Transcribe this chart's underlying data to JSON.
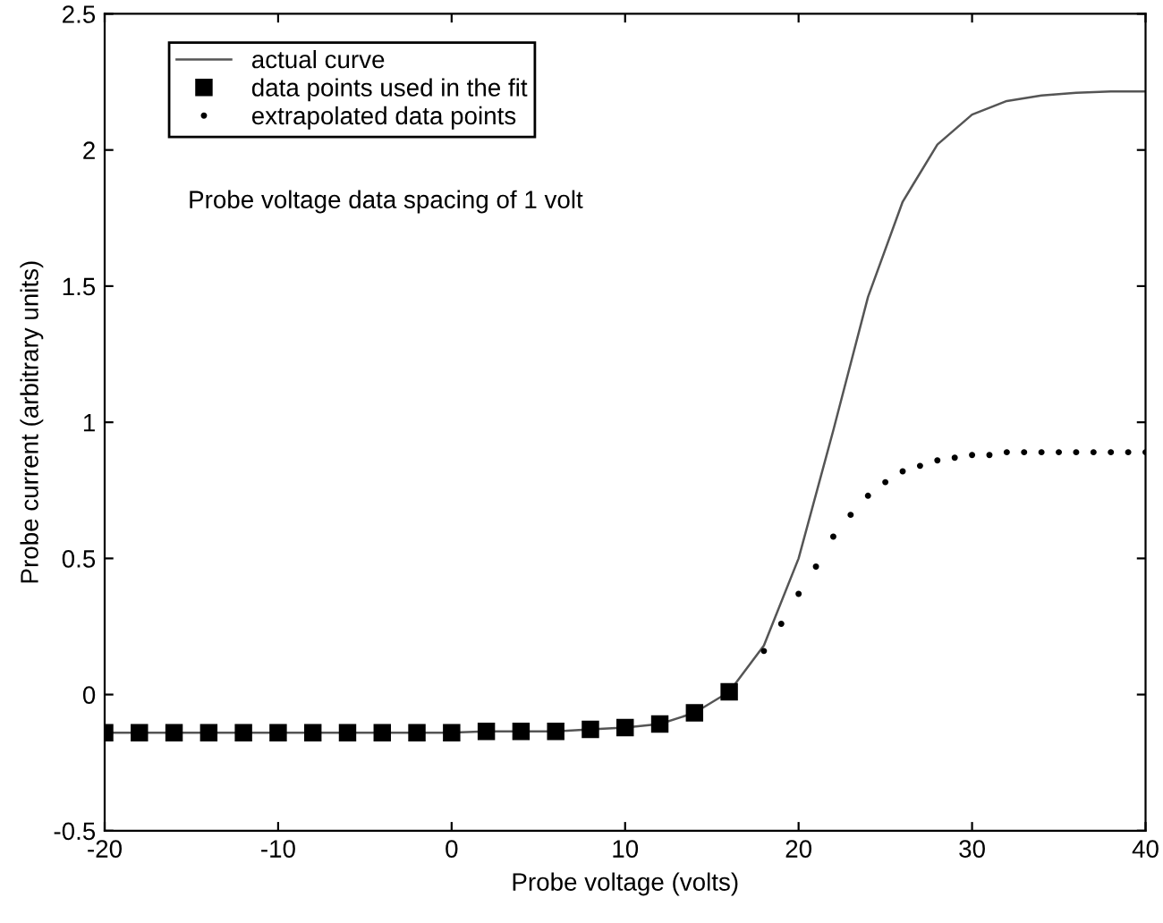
{
  "chart_data": {
    "type": "line",
    "xlabel": "Probe voltage (volts)",
    "ylabel": "Probe current (arbitrary units)",
    "xlim": [
      -20,
      40
    ],
    "ylim": [
      -0.5,
      2.5
    ],
    "xticks": [
      -20,
      -10,
      0,
      10,
      20,
      30,
      40
    ],
    "yticks": [
      -0.5,
      0,
      0.5,
      1,
      1.5,
      2,
      2.5
    ],
    "grid": false,
    "legend": "top left",
    "annotations": [
      "Probe voltage data spacing of 1 volt"
    ],
    "series": [
      {
        "name": "actual curve",
        "color": "#555555",
        "marker": "none",
        "x": [
          -20,
          -18,
          -16,
          -14,
          -12,
          -10,
          -8,
          -6,
          -4,
          -2,
          0,
          2,
          4,
          6,
          8,
          10,
          12,
          14,
          16,
          18,
          20,
          22,
          24,
          26,
          28,
          30,
          32,
          34,
          36,
          38,
          40
        ],
        "values": [
          -0.14,
          -0.14,
          -0.14,
          -0.14,
          -0.14,
          -0.14,
          -0.14,
          -0.14,
          -0.14,
          -0.14,
          -0.14,
          -0.135,
          -0.135,
          -0.135,
          -0.128,
          -0.121,
          -0.108,
          -0.067,
          0.01,
          0.18,
          0.5,
          0.97,
          1.46,
          1.81,
          2.02,
          2.13,
          2.18,
          2.2,
          2.21,
          2.215,
          2.215
        ]
      },
      {
        "name": "data points used in the fit",
        "type": "scatter",
        "color": "#000000",
        "marker": "square",
        "x": [
          -20,
          -18,
          -16,
          -14,
          -12,
          -10,
          -8,
          -6,
          -4,
          -2,
          0,
          2,
          4,
          6,
          8,
          10,
          12,
          14,
          16
        ],
        "values": [
          -0.14,
          -0.14,
          -0.14,
          -0.14,
          -0.14,
          -0.14,
          -0.14,
          -0.14,
          -0.14,
          -0.14,
          -0.14,
          -0.135,
          -0.135,
          -0.135,
          -0.128,
          -0.121,
          -0.108,
          -0.067,
          0.01
        ]
      },
      {
        "name": "extrapolated data points",
        "type": "scatter",
        "color": "#000000",
        "marker": "dot",
        "x": [
          18,
          19,
          20,
          21,
          22,
          23,
          24,
          25,
          26,
          27,
          28,
          29,
          30,
          31,
          32,
          33,
          34,
          35,
          36,
          37,
          38,
          39,
          40
        ],
        "values": [
          0.16,
          0.26,
          0.37,
          0.47,
          0.58,
          0.66,
          0.73,
          0.78,
          0.82,
          0.84,
          0.86,
          0.87,
          0.88,
          0.88,
          0.89,
          0.89,
          0.89,
          0.89,
          0.89,
          0.89,
          0.89,
          0.89,
          0.89
        ]
      }
    ]
  }
}
